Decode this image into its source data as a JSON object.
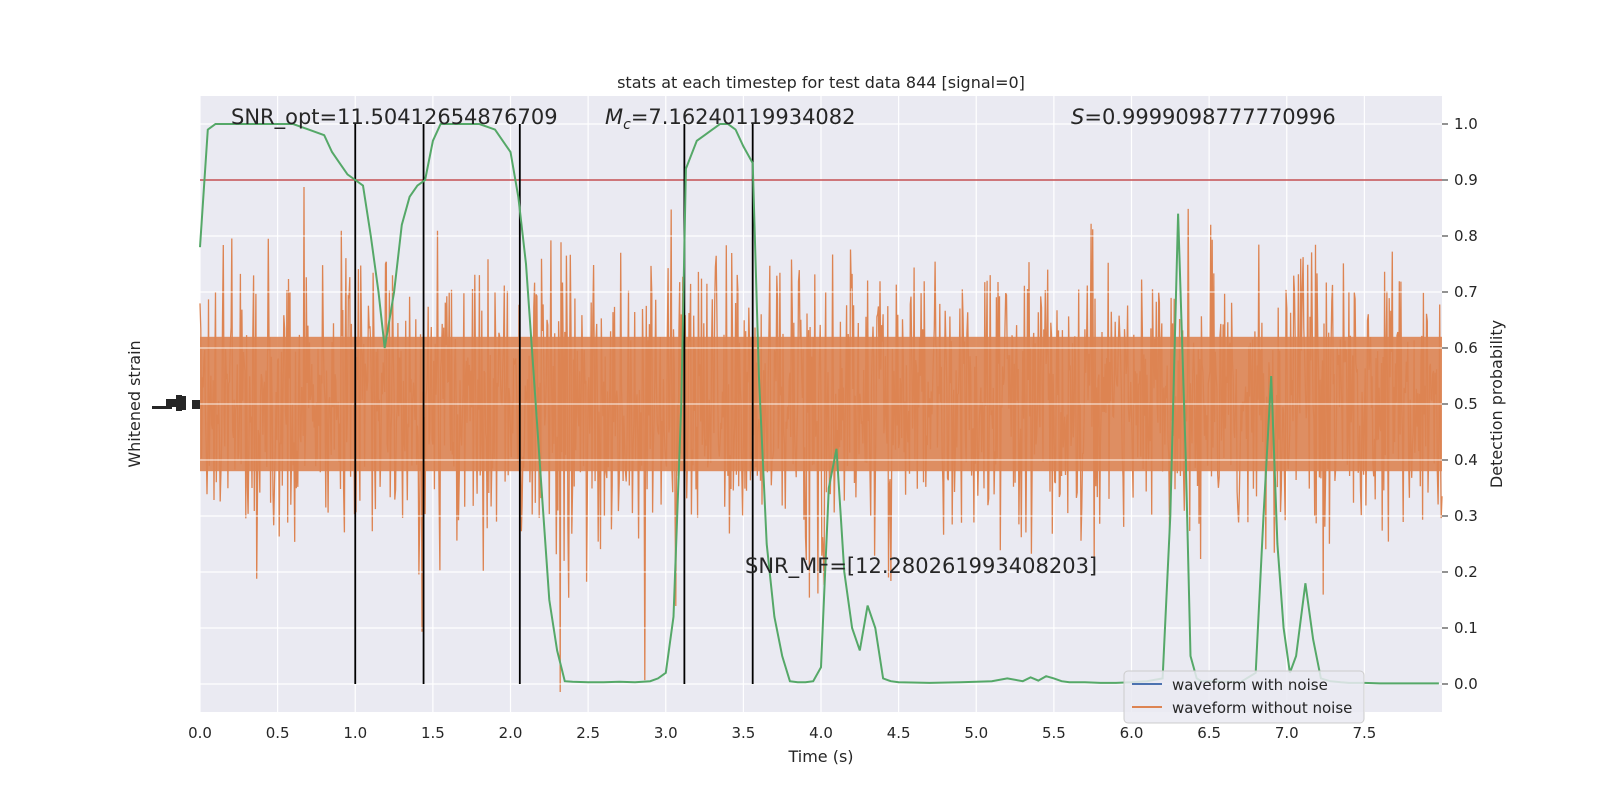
{
  "chart_data": {
    "type": "line",
    "title": "stats at each timestep for test data 844 [signal=0]",
    "xlabel": "Time (s)",
    "ylabel_left": "Whitened strain",
    "ylabel_right": "Detection probability",
    "xlim": [
      0.0,
      8.0
    ],
    "ylim_right": [
      -0.05,
      1.05
    ],
    "x_ticks": [
      "0.0",
      "0.5",
      "1.0",
      "1.5",
      "2.0",
      "2.5",
      "3.0",
      "3.5",
      "4.0",
      "4.5",
      "5.0",
      "5.5",
      "6.0",
      "6.5",
      "7.0",
      "7.5"
    ],
    "y_ticks_right": [
      "0.0",
      "0.1",
      "0.2",
      "0.3",
      "0.4",
      "0.5",
      "0.6",
      "0.7",
      "0.8",
      "0.9",
      "1.0"
    ],
    "grid": true,
    "legend_position": "lower right",
    "colors": {
      "background": "#eaeaf2",
      "grid": "#ffffff",
      "waveform_with_noise": "#4c72b0",
      "waveform_without_noise": "#dd8452",
      "probability": "#55a868",
      "threshold": "#c44e52",
      "markers": "#000000"
    },
    "annotations": {
      "snr_opt": "SNR_opt=11.50412654876709",
      "mc_symbol": "M",
      "mc_sub": "c",
      "mc_value": "=7.16240119934082",
      "s_symbol": "S",
      "s_value": "=0.9999098777770996",
      "snr_mf": "SNR_MF=[12.280261993408203]"
    },
    "threshold": 0.9,
    "vertical_lines": [
      1.0,
      1.44,
      2.06,
      3.12,
      3.56
    ],
    "series": [
      {
        "name": "waveform with noise"
      },
      {
        "name": "waveform without noise"
      }
    ],
    "probability": {
      "x": [
        0.0,
        0.05,
        0.1,
        0.2,
        0.3,
        0.4,
        0.5,
        0.6,
        0.7,
        0.8,
        0.85,
        0.9,
        0.95,
        1.0,
        1.05,
        1.1,
        1.15,
        1.19,
        1.25,
        1.3,
        1.35,
        1.4,
        1.45,
        1.5,
        1.55,
        1.6,
        1.7,
        1.8,
        1.9,
        2.0,
        2.05,
        2.1,
        2.15,
        2.2,
        2.25,
        2.3,
        2.35,
        2.4,
        2.5,
        2.6,
        2.7,
        2.8,
        2.9,
        2.95,
        3.0,
        3.05,
        3.1,
        3.13,
        3.2,
        3.25,
        3.3,
        3.35,
        3.4,
        3.45,
        3.5,
        3.56,
        3.6,
        3.65,
        3.7,
        3.75,
        3.8,
        3.85,
        3.9,
        3.95,
        4.0,
        4.05,
        4.1,
        4.15,
        4.2,
        4.25,
        4.3,
        4.35,
        4.4,
        4.45,
        4.5,
        4.7,
        4.9,
        5.1,
        5.2,
        5.3,
        5.35,
        5.4,
        5.45,
        5.5,
        5.55,
        5.6,
        5.7,
        5.8,
        5.9,
        6.0,
        6.1,
        6.2,
        6.25,
        6.3,
        6.35,
        6.38,
        6.42,
        6.45,
        6.5,
        6.6,
        6.7,
        6.8,
        6.85,
        6.9,
        6.94,
        6.98,
        7.02,
        7.06,
        7.12,
        7.17,
        7.22,
        7.28,
        7.35,
        7.4,
        7.5,
        7.6,
        7.7,
        7.8,
        7.9,
        7.98
      ],
      "y": [
        0.78,
        0.99,
        1.0,
        1.0,
        1.0,
        1.0,
        1.0,
        1.0,
        0.99,
        0.98,
        0.95,
        0.93,
        0.91,
        0.9,
        0.89,
        0.8,
        0.7,
        0.6,
        0.7,
        0.82,
        0.87,
        0.89,
        0.9,
        0.97,
        1.0,
        1.0,
        1.0,
        1.0,
        0.99,
        0.95,
        0.87,
        0.75,
        0.55,
        0.35,
        0.15,
        0.06,
        0.005,
        0.004,
        0.003,
        0.003,
        0.004,
        0.003,
        0.005,
        0.01,
        0.02,
        0.12,
        0.5,
        0.92,
        0.97,
        0.98,
        0.99,
        1.0,
        1.0,
        0.99,
        0.96,
        0.93,
        0.55,
        0.25,
        0.12,
        0.05,
        0.005,
        0.003,
        0.003,
        0.005,
        0.03,
        0.35,
        0.42,
        0.2,
        0.1,
        0.06,
        0.14,
        0.1,
        0.01,
        0.005,
        0.003,
        0.002,
        0.003,
        0.005,
        0.01,
        0.005,
        0.012,
        0.006,
        0.014,
        0.01,
        0.005,
        0.003,
        0.003,
        0.002,
        0.002,
        0.003,
        0.005,
        0.01,
        0.3,
        0.84,
        0.4,
        0.05,
        0.01,
        0.005,
        0.005,
        0.004,
        0.003,
        0.02,
        0.3,
        0.55,
        0.25,
        0.1,
        0.02,
        0.05,
        0.18,
        0.08,
        0.01,
        0.005,
        0.003,
        0.002,
        0.002,
        0.001,
        0.001,
        0.001,
        0.001,
        0.001
      ]
    }
  }
}
